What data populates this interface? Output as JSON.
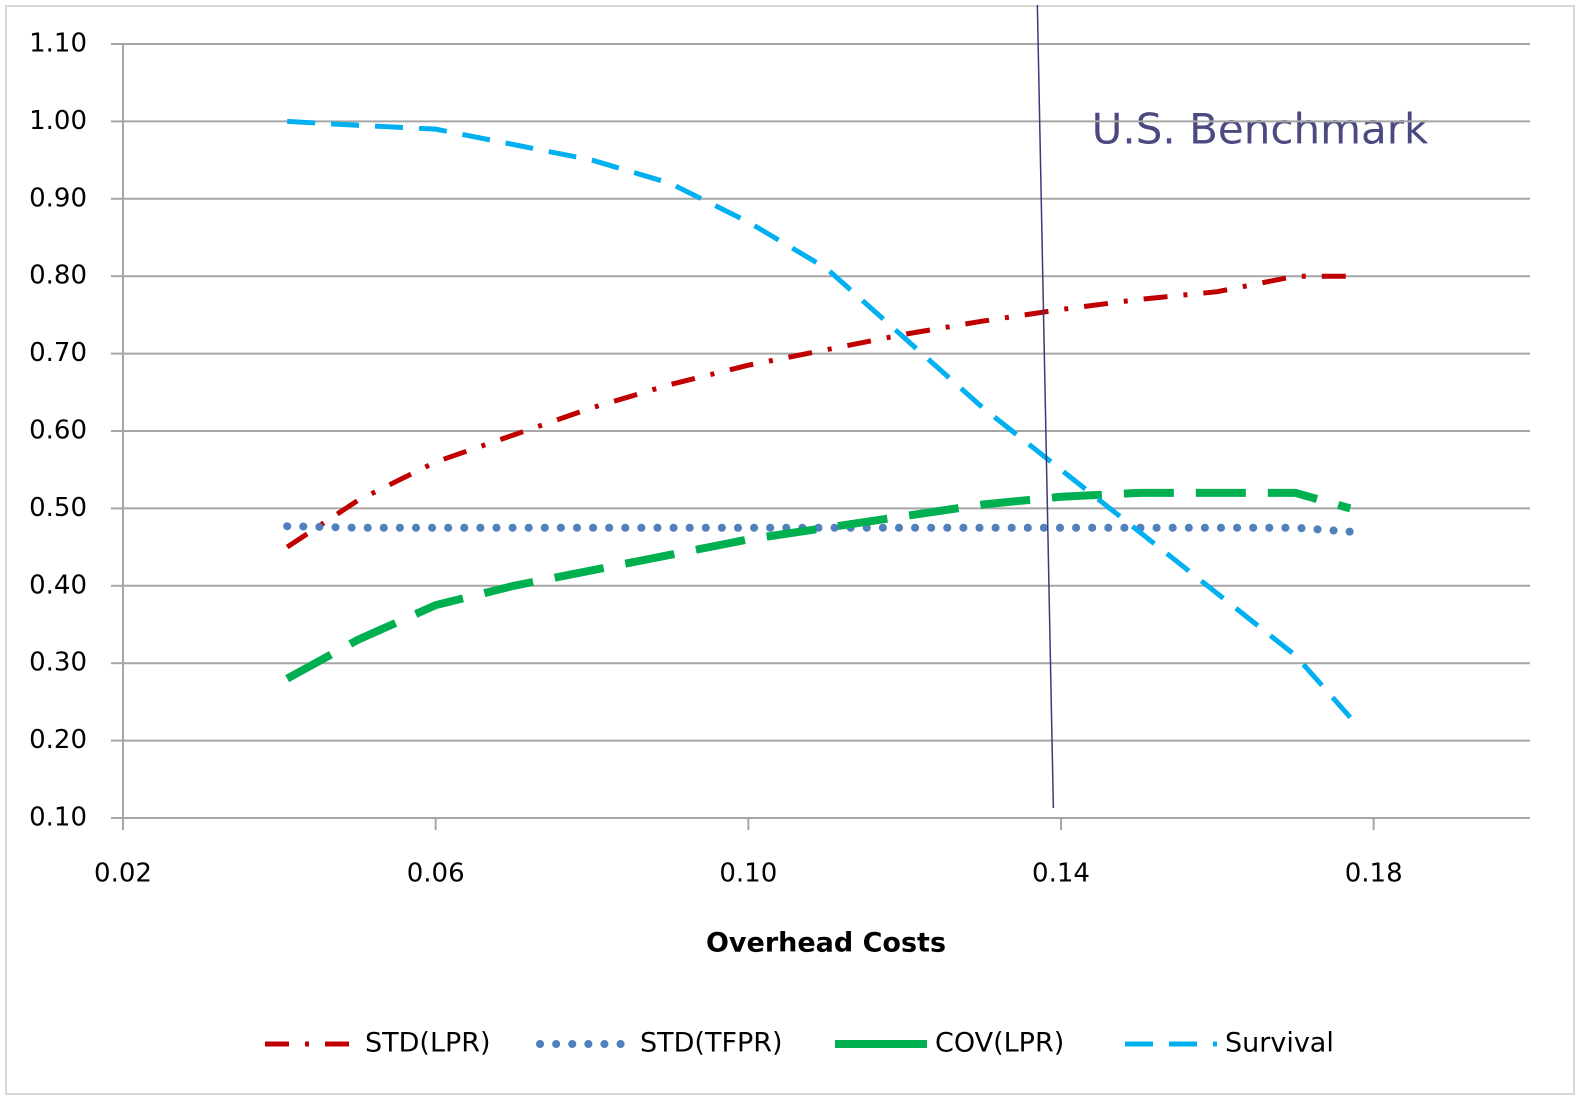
{
  "chart_data": {
    "type": "line",
    "xlabel": "Overhead Costs",
    "annotation": "U.S. Benchmark",
    "benchmark_x": 0.138,
    "x": [
      0.041,
      0.05,
      0.06,
      0.07,
      0.08,
      0.09,
      0.1,
      0.11,
      0.12,
      0.13,
      0.14,
      0.15,
      0.16,
      0.17,
      0.177
    ],
    "series": [
      {
        "name": "STD(LPR)",
        "color": "#c00000",
        "dash": "dashdot",
        "values": [
          0.45,
          0.51,
          0.56,
          0.595,
          0.63,
          0.66,
          0.685,
          0.705,
          0.725,
          0.742,
          0.757,
          0.77,
          0.78,
          0.8,
          0.8
        ]
      },
      {
        "name": "STD(TFPR)",
        "color": "#4f81bd",
        "dash": "dot",
        "values": [
          0.477,
          0.475,
          0.475,
          0.475,
          0.475,
          0.475,
          0.475,
          0.475,
          0.475,
          0.475,
          0.475,
          0.475,
          0.475,
          0.475,
          0.47
        ]
      },
      {
        "name": "COV(LPR)",
        "color": "#00b050",
        "dash": "longdash",
        "values": [
          0.28,
          0.33,
          0.375,
          0.4,
          0.42,
          0.44,
          0.46,
          0.475,
          0.49,
          0.505,
          0.515,
          0.52,
          0.52,
          0.52,
          0.5
        ]
      },
      {
        "name": "Survival",
        "color": "#00b0f0",
        "dash": "dash",
        "values": [
          1.0,
          0.995,
          0.99,
          0.97,
          0.95,
          0.92,
          0.87,
          0.81,
          0.72,
          0.63,
          0.55,
          0.47,
          0.39,
          0.31,
          0.23
        ]
      }
    ],
    "xlim": [
      0.02,
      0.2
    ],
    "xticks": [
      0.02,
      0.06,
      {
        "value": 0.1,
        "label": "0.10"
      },
      0.14,
      0.18
    ],
    "ylim": [
      0.1,
      1.1
    ],
    "yticks": [
      {
        "value": 0.1,
        "label": "0.10"
      },
      {
        "value": 0.2,
        "label": "0.20"
      },
      {
        "value": 0.3,
        "label": "0.30"
      },
      {
        "value": 0.4,
        "label": "0.40"
      },
      {
        "value": 0.5,
        "label": "0.50"
      },
      {
        "value": 0.6,
        "label": "0.60"
      },
      {
        "value": 0.7,
        "label": "0.70"
      },
      {
        "value": 0.8,
        "label": "0.80"
      },
      {
        "value": 0.9,
        "label": "0.90"
      },
      {
        "value": 1.0,
        "label": "1.00"
      },
      {
        "value": 1.1,
        "label": "1.10"
      }
    ],
    "grid": true,
    "legend": "bottom"
  }
}
